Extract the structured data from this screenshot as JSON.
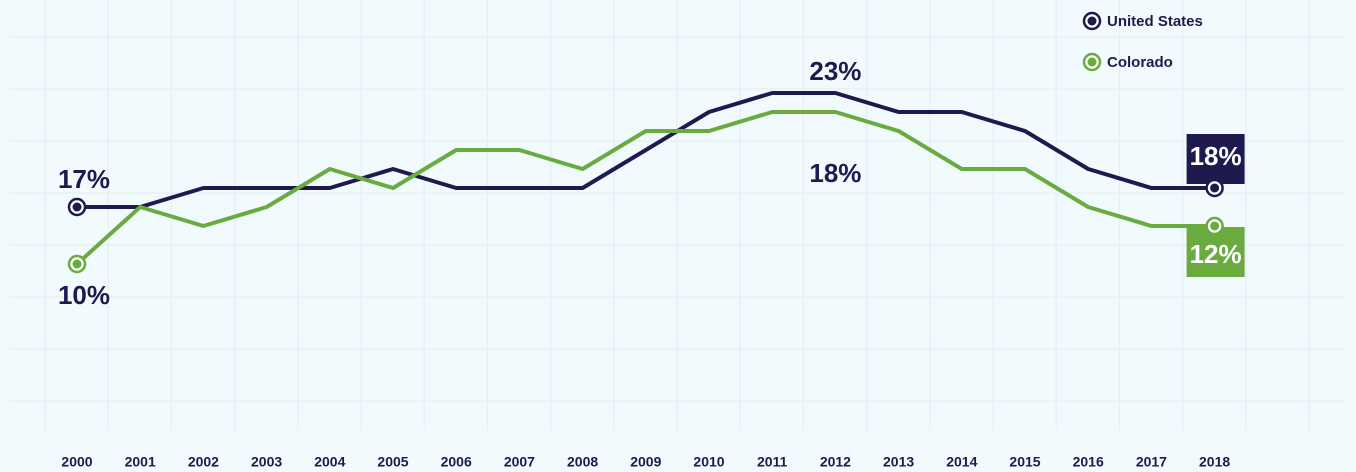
{
  "chart_data": {
    "type": "line",
    "categories": [
      "2000",
      "2001",
      "2002",
      "2003",
      "2004",
      "2005",
      "2006",
      "2007",
      "2008",
      "2009",
      "2010",
      "2011",
      "2012",
      "2013",
      "2014",
      "2015",
      "2016",
      "2017",
      "2018"
    ],
    "series": [
      {
        "name": "United States",
        "color": "#1f1a4d",
        "values": [
          17,
          17,
          18,
          18,
          18,
          19,
          18,
          18,
          18,
          20,
          22,
          23,
          23,
          22,
          22,
          21,
          19,
          18,
          18
        ],
        "value_labels": [
          "17%",
          null,
          null,
          null,
          null,
          null,
          null,
          null,
          null,
          null,
          null,
          null,
          "23%",
          null,
          null,
          null,
          null,
          null,
          "18%"
        ]
      },
      {
        "name": "Colorado",
        "color": "#6aab3f",
        "axis": "y2",
        "values": [
          10,
          13,
          12,
          13,
          15,
          14,
          16,
          16,
          15,
          17,
          17,
          18,
          18,
          17,
          15,
          15,
          13,
          12,
          12
        ],
        "value_labels": [
          "10%",
          null,
          null,
          null,
          null,
          null,
          null,
          null,
          null,
          null,
          null,
          null,
          "18%",
          null,
          null,
          null,
          null,
          null,
          "12%"
        ]
      }
    ],
    "ylim": [
      5,
      26
    ],
    "y2lim": [
      1,
      22
    ],
    "legend": "top-right"
  }
}
